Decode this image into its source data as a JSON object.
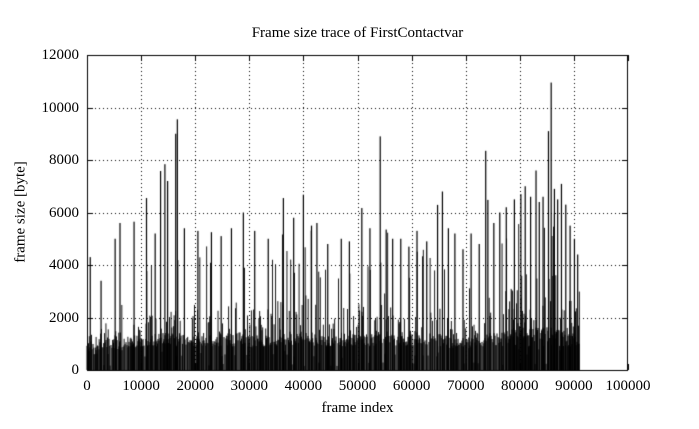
{
  "page": {
    "background": "#ffffff"
  },
  "chart_data": {
    "type": "line",
    "title": "Frame size trace of FirstContactvar",
    "xlabel": "frame index",
    "ylabel": "frame size [byte]",
    "xlim": [
      0,
      100000
    ],
    "ylim": [
      0,
      12000
    ],
    "x_ticks": [
      0,
      10000,
      20000,
      30000,
      40000,
      50000,
      60000,
      70000,
      80000,
      90000,
      100000
    ],
    "y_ticks": [
      0,
      2000,
      4000,
      6000,
      8000,
      10000,
      12000
    ],
    "grid": "dotted",
    "legend": "none",
    "line_color": "#000000",
    "grid_color": "#000000",
    "background_color": "#ffffff",
    "series_name": "frame size",
    "data_end_x": 91000,
    "baseline_band": {
      "min": 300,
      "max": 1800
    },
    "envelope": [
      [
        0,
        2300
      ],
      [
        800,
        2400
      ],
      [
        1500,
        900
      ],
      [
        2500,
        2800
      ],
      [
        3500,
        3400
      ],
      [
        4500,
        3200
      ],
      [
        5500,
        3000
      ],
      [
        6500,
        2600
      ],
      [
        7500,
        3200
      ],
      [
        8500,
        4200
      ],
      [
        9500,
        3400
      ],
      [
        10500,
        3600
      ],
      [
        11500,
        4200
      ],
      [
        12500,
        4000
      ],
      [
        13500,
        4600
      ],
      [
        14500,
        5000
      ],
      [
        15500,
        4800
      ],
      [
        16500,
        5200
      ],
      [
        17500,
        4600
      ],
      [
        18500,
        4200
      ],
      [
        19500,
        4800
      ],
      [
        20500,
        4600
      ],
      [
        21500,
        4200
      ],
      [
        22500,
        4800
      ],
      [
        23500,
        4400
      ],
      [
        24500,
        4200
      ],
      [
        25500,
        4600
      ],
      [
        26500,
        5000
      ],
      [
        27500,
        4600
      ],
      [
        28500,
        5200
      ],
      [
        29500,
        4200
      ],
      [
        30500,
        3900
      ],
      [
        31500,
        4300
      ],
      [
        32500,
        3700
      ],
      [
        33500,
        4100
      ],
      [
        34500,
        4500
      ],
      [
        35500,
        5200
      ],
      [
        36500,
        5600
      ],
      [
        37500,
        4700
      ],
      [
        38500,
        4300
      ],
      [
        39500,
        5200
      ],
      [
        40500,
        5000
      ],
      [
        41500,
        5400
      ],
      [
        42500,
        4700
      ],
      [
        43500,
        4100
      ],
      [
        44500,
        3700
      ],
      [
        45500,
        3500
      ],
      [
        46500,
        3900
      ],
      [
        47500,
        4300
      ],
      [
        48500,
        4100
      ],
      [
        49500,
        4700
      ],
      [
        50500,
        5200
      ],
      [
        51500,
        4500
      ],
      [
        52500,
        4100
      ],
      [
        53500,
        4500
      ],
      [
        54500,
        5100
      ],
      [
        55500,
        5300
      ],
      [
        56500,
        4300
      ],
      [
        57500,
        3900
      ],
      [
        58500,
        4500
      ],
      [
        59500,
        4100
      ],
      [
        60500,
        4700
      ],
      [
        61500,
        5000
      ],
      [
        62500,
        4500
      ],
      [
        63500,
        4800
      ],
      [
        64500,
        4300
      ],
      [
        65500,
        4700
      ],
      [
        66500,
        4100
      ],
      [
        67500,
        3500
      ],
      [
        68500,
        3300
      ],
      [
        69500,
        3600
      ],
      [
        70500,
        3400
      ],
      [
        71500,
        3100
      ],
      [
        72500,
        3500
      ],
      [
        73500,
        4300
      ],
      [
        74500,
        5000
      ],
      [
        75500,
        4500
      ],
      [
        76500,
        4900
      ],
      [
        77500,
        5500
      ],
      [
        78500,
        6100
      ],
      [
        79500,
        6300
      ],
      [
        80500,
        6500
      ],
      [
        81500,
        6400
      ],
      [
        82500,
        6500
      ],
      [
        83500,
        6300
      ],
      [
        84500,
        6500
      ],
      [
        85500,
        6400
      ],
      [
        86500,
        6300
      ],
      [
        87500,
        6000
      ],
      [
        88500,
        5400
      ],
      [
        89500,
        4800
      ],
      [
        90500,
        4200
      ],
      [
        91000,
        3000
      ]
    ],
    "peaks": [
      [
        600,
        4300
      ],
      [
        2600,
        3400
      ],
      [
        5200,
        5000
      ],
      [
        6100,
        5600
      ],
      [
        8700,
        5650
      ],
      [
        11000,
        6550
      ],
      [
        12600,
        5200
      ],
      [
        13600,
        7580
      ],
      [
        14400,
        7840
      ],
      [
        14900,
        7200
      ],
      [
        16400,
        9000
      ],
      [
        16700,
        9550
      ],
      [
        18000,
        5400
      ],
      [
        20500,
        5300
      ],
      [
        23000,
        5250
      ],
      [
        24800,
        5100
      ],
      [
        26700,
        5400
      ],
      [
        28900,
        6000
      ],
      [
        31000,
        5300
      ],
      [
        33500,
        5000
      ],
      [
        36300,
        6550
      ],
      [
        38200,
        5800
      ],
      [
        40000,
        6680
      ],
      [
        41500,
        5500
      ],
      [
        42500,
        5600
      ],
      [
        44500,
        4800
      ],
      [
        47000,
        5000
      ],
      [
        48500,
        4900
      ],
      [
        50800,
        6170
      ],
      [
        52300,
        5400
      ],
      [
        54200,
        8900
      ],
      [
        55300,
        5350
      ],
      [
        56500,
        5000
      ],
      [
        58000,
        5000
      ],
      [
        59500,
        4700
      ],
      [
        61000,
        5300
      ],
      [
        62800,
        4900
      ],
      [
        64800,
        6290
      ],
      [
        65700,
        6800
      ],
      [
        66800,
        5400
      ],
      [
        68000,
        5200
      ],
      [
        69500,
        4600
      ],
      [
        71000,
        5200
      ],
      [
        72500,
        4800
      ],
      [
        73700,
        8350
      ],
      [
        74100,
        6480
      ],
      [
        75200,
        5600
      ],
      [
        76300,
        6000
      ],
      [
        77500,
        6200
      ],
      [
        79000,
        6500
      ],
      [
        80200,
        6700
      ],
      [
        81000,
        7000
      ],
      [
        82000,
        6600
      ],
      [
        83000,
        7600
      ],
      [
        83600,
        6400
      ],
      [
        84300,
        6600
      ],
      [
        85300,
        9100
      ],
      [
        85800,
        10950
      ],
      [
        86400,
        6900
      ],
      [
        87000,
        6500
      ],
      [
        87700,
        7090
      ],
      [
        88500,
        6300
      ],
      [
        89300,
        5500
      ],
      [
        90100,
        5000
      ],
      [
        90700,
        4400
      ]
    ]
  }
}
